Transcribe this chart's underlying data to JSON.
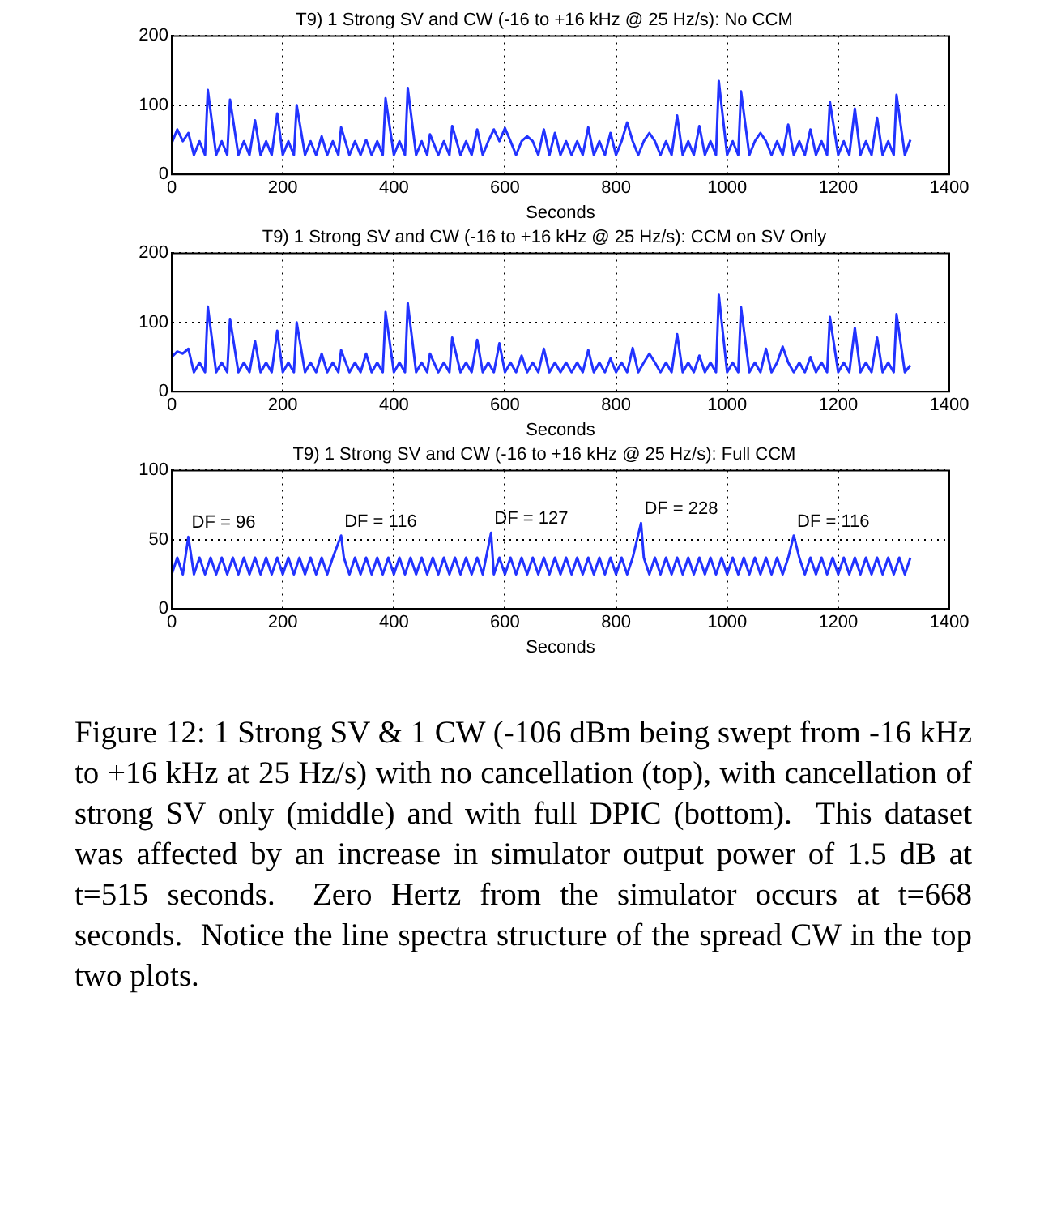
{
  "chart_data": [
    {
      "type": "line",
      "title": "T9) 1 Strong SV and CW (-16 to +16 kHz @ 25 Hz/s): No CCM",
      "xlabel": "Seconds",
      "xlim": [
        0,
        1400
      ],
      "xticks": [
        0,
        200,
        400,
        600,
        800,
        1000,
        1200,
        1400
      ],
      "ylim": [
        0,
        200
      ],
      "yticks": [
        0,
        100,
        200
      ],
      "grid": true,
      "legend": false,
      "series": [
        {
          "color": "#2233ff",
          "x": [
            0,
            10,
            20,
            30,
            40,
            50,
            60,
            65,
            80,
            90,
            100,
            105,
            120,
            130,
            140,
            150,
            160,
            170,
            180,
            190,
            200,
            210,
            220,
            225,
            240,
            250,
            260,
            270,
            280,
            290,
            300,
            305,
            320,
            330,
            340,
            350,
            360,
            370,
            380,
            385,
            400,
            410,
            420,
            425,
            440,
            450,
            460,
            465,
            480,
            490,
            500,
            505,
            520,
            530,
            540,
            550,
            560,
            570,
            580,
            590,
            600,
            610,
            620,
            630,
            640,
            650,
            660,
            670,
            680,
            690,
            700,
            710,
            720,
            730,
            740,
            750,
            760,
            770,
            780,
            790,
            800,
            810,
            820,
            830,
            840,
            850,
            860,
            870,
            880,
            890,
            900,
            910,
            920,
            930,
            940,
            950,
            960,
            970,
            980,
            985,
            1000,
            1010,
            1020,
            1025,
            1040,
            1050,
            1060,
            1070,
            1080,
            1090,
            1100,
            1110,
            1120,
            1130,
            1140,
            1150,
            1160,
            1170,
            1180,
            1185,
            1200,
            1210,
            1220,
            1230,
            1240,
            1250,
            1260,
            1270,
            1280,
            1290,
            1300,
            1305,
            1320,
            1330
          ],
          "values": [
            45,
            65,
            48,
            60,
            28,
            48,
            28,
            122,
            28,
            48,
            28,
            108,
            28,
            48,
            28,
            78,
            28,
            48,
            28,
            88,
            28,
            48,
            28,
            100,
            28,
            48,
            28,
            55,
            28,
            48,
            28,
            68,
            28,
            48,
            28,
            50,
            28,
            48,
            28,
            110,
            28,
            48,
            28,
            125,
            28,
            48,
            28,
            58,
            28,
            48,
            28,
            70,
            28,
            48,
            28,
            65,
            28,
            48,
            65,
            48,
            67,
            48,
            28,
            48,
            55,
            48,
            28,
            65,
            28,
            60,
            28,
            48,
            28,
            48,
            28,
            68,
            28,
            48,
            28,
            60,
            28,
            48,
            75,
            48,
            28,
            48,
            60,
            48,
            28,
            48,
            28,
            85,
            28,
            48,
            28,
            70,
            28,
            48,
            28,
            135,
            28,
            48,
            28,
            120,
            28,
            48,
            60,
            48,
            28,
            48,
            28,
            72,
            28,
            48,
            28,
            65,
            28,
            48,
            28,
            105,
            28,
            48,
            28,
            95,
            28,
            48,
            28,
            82,
            28,
            48,
            28,
            115,
            28,
            50
          ]
        }
      ]
    },
    {
      "type": "line",
      "title": "T9) 1 Strong SV and CW (-16 to +16 kHz @ 25 Hz/s): CCM on SV Only",
      "xlabel": "Seconds",
      "xlim": [
        0,
        1400
      ],
      "xticks": [
        0,
        200,
        400,
        600,
        800,
        1000,
        1200,
        1400
      ],
      "ylim": [
        0,
        200
      ],
      "yticks": [
        0,
        100,
        200
      ],
      "grid": true,
      "legend": false,
      "series": [
        {
          "color": "#2233ff",
          "x": [
            0,
            10,
            20,
            30,
            40,
            50,
            60,
            65,
            80,
            90,
            100,
            105,
            120,
            130,
            140,
            150,
            160,
            170,
            180,
            190,
            200,
            210,
            220,
            225,
            240,
            250,
            260,
            270,
            280,
            290,
            300,
            305,
            320,
            330,
            340,
            350,
            360,
            370,
            380,
            385,
            400,
            410,
            420,
            425,
            440,
            450,
            460,
            465,
            480,
            490,
            500,
            505,
            520,
            530,
            540,
            550,
            560,
            570,
            580,
            590,
            600,
            610,
            620,
            630,
            640,
            650,
            660,
            670,
            680,
            690,
            700,
            710,
            720,
            730,
            740,
            750,
            760,
            770,
            780,
            790,
            800,
            810,
            820,
            830,
            840,
            850,
            860,
            870,
            880,
            890,
            900,
            910,
            920,
            930,
            940,
            950,
            960,
            970,
            980,
            985,
            1000,
            1010,
            1020,
            1025,
            1040,
            1050,
            1060,
            1070,
            1080,
            1090,
            1100,
            1110,
            1120,
            1130,
            1140,
            1150,
            1160,
            1170,
            1180,
            1185,
            1200,
            1210,
            1220,
            1230,
            1240,
            1250,
            1260,
            1270,
            1280,
            1290,
            1300,
            1305,
            1320,
            1330
          ],
          "values": [
            50,
            58,
            55,
            62,
            28,
            42,
            28,
            123,
            28,
            42,
            28,
            105,
            28,
            42,
            28,
            73,
            28,
            42,
            28,
            88,
            28,
            42,
            28,
            100,
            28,
            42,
            28,
            55,
            28,
            42,
            28,
            60,
            28,
            42,
            28,
            55,
            28,
            42,
            28,
            115,
            28,
            42,
            28,
            128,
            28,
            42,
            28,
            55,
            28,
            42,
            28,
            78,
            28,
            42,
            28,
            75,
            28,
            42,
            28,
            70,
            28,
            42,
            28,
            52,
            28,
            42,
            28,
            62,
            28,
            42,
            28,
            42,
            28,
            42,
            28,
            60,
            28,
            42,
            28,
            48,
            28,
            42,
            28,
            63,
            28,
            42,
            55,
            42,
            28,
            42,
            28,
            83,
            28,
            42,
            28,
            52,
            28,
            42,
            28,
            140,
            28,
            42,
            28,
            122,
            28,
            42,
            28,
            62,
            28,
            42,
            65,
            42,
            28,
            42,
            28,
            50,
            28,
            42,
            28,
            108,
            28,
            42,
            28,
            92,
            28,
            42,
            28,
            78,
            28,
            42,
            28,
            112,
            28,
            38
          ]
        }
      ]
    },
    {
      "type": "line",
      "title": "T9) 1 Strong SV and CW (-16 to +16 kHz @ 25 Hz/s): Full CCM",
      "xlabel": "Seconds",
      "xlim": [
        0,
        1400
      ],
      "xticks": [
        0,
        200,
        400,
        600,
        800,
        1000,
        1200,
        1400
      ],
      "ylim": [
        0,
        100
      ],
      "yticks": [
        0,
        50,
        100
      ],
      "grid": true,
      "legend": false,
      "series": [
        {
          "color": "#2233ff",
          "x": [
            0,
            10,
            20,
            30,
            40,
            50,
            60,
            70,
            80,
            90,
            100,
            110,
            120,
            130,
            140,
            150,
            160,
            170,
            180,
            190,
            200,
            210,
            220,
            230,
            240,
            250,
            260,
            270,
            280,
            290,
            305,
            310,
            320,
            330,
            340,
            350,
            360,
            370,
            380,
            390,
            400,
            410,
            420,
            430,
            440,
            450,
            460,
            470,
            480,
            490,
            500,
            510,
            520,
            530,
            540,
            550,
            560,
            575,
            580,
            590,
            600,
            610,
            620,
            630,
            640,
            650,
            660,
            670,
            680,
            690,
            700,
            710,
            720,
            730,
            740,
            750,
            760,
            770,
            780,
            790,
            800,
            810,
            820,
            830,
            845,
            850,
            860,
            870,
            880,
            890,
            900,
            910,
            920,
            930,
            940,
            950,
            960,
            970,
            980,
            990,
            1000,
            1010,
            1020,
            1030,
            1040,
            1050,
            1060,
            1070,
            1080,
            1090,
            1100,
            1110,
            1120,
            1130,
            1140,
            1150,
            1160,
            1170,
            1180,
            1190,
            1200,
            1210,
            1220,
            1230,
            1240,
            1250,
            1260,
            1270,
            1280,
            1290,
            1300,
            1310,
            1320,
            1330
          ],
          "values": [
            25,
            37,
            25,
            52,
            25,
            37,
            25,
            37,
            25,
            37,
            25,
            37,
            25,
            37,
            25,
            37,
            25,
            37,
            25,
            37,
            25,
            37,
            25,
            37,
            25,
            37,
            25,
            37,
            25,
            37,
            53,
            37,
            25,
            37,
            25,
            37,
            25,
            37,
            25,
            37,
            25,
            37,
            25,
            37,
            25,
            37,
            25,
            37,
            25,
            37,
            25,
            37,
            25,
            37,
            25,
            37,
            25,
            55,
            25,
            37,
            25,
            37,
            25,
            37,
            25,
            37,
            25,
            37,
            25,
            37,
            25,
            37,
            25,
            37,
            25,
            37,
            25,
            37,
            25,
            37,
            25,
            37,
            25,
            37,
            62,
            37,
            25,
            37,
            25,
            37,
            25,
            37,
            25,
            37,
            25,
            37,
            25,
            37,
            25,
            37,
            25,
            37,
            25,
            37,
            25,
            37,
            25,
            37,
            25,
            37,
            25,
            37,
            53,
            37,
            25,
            37,
            25,
            37,
            25,
            37,
            25,
            37,
            25,
            37,
            25,
            37,
            25,
            37,
            25,
            37,
            25,
            37,
            25,
            37
          ]
        }
      ],
      "annotations": [
        {
          "text": "DF = 96",
          "x": 30,
          "y": 52
        },
        {
          "text": "DF = 116",
          "x": 305,
          "y": 53
        },
        {
          "text": "DF = 127",
          "x": 575,
          "y": 55
        },
        {
          "text": "DF = 228",
          "x": 845,
          "y": 62
        },
        {
          "text": "DF = 116",
          "x": 1120,
          "y": 53
        },
        "Figure 12: 1 Strong SV & 1 CW (-106 dBm being swept from -16 kHz to +16 kHz at 25 Hz/s) with no cancellation (top), with cancellation of strong SV only (middle) and with full DPIC (bottom).  This dataset was affected by an increase in simulator output power of 1.5 dB at t=515 seconds.  Zero Hertz from the simulator occurs at t=668 seconds.  Notice the line spectra structure of the spread CW in the top two plots."
      ]
    }
  ]
}
